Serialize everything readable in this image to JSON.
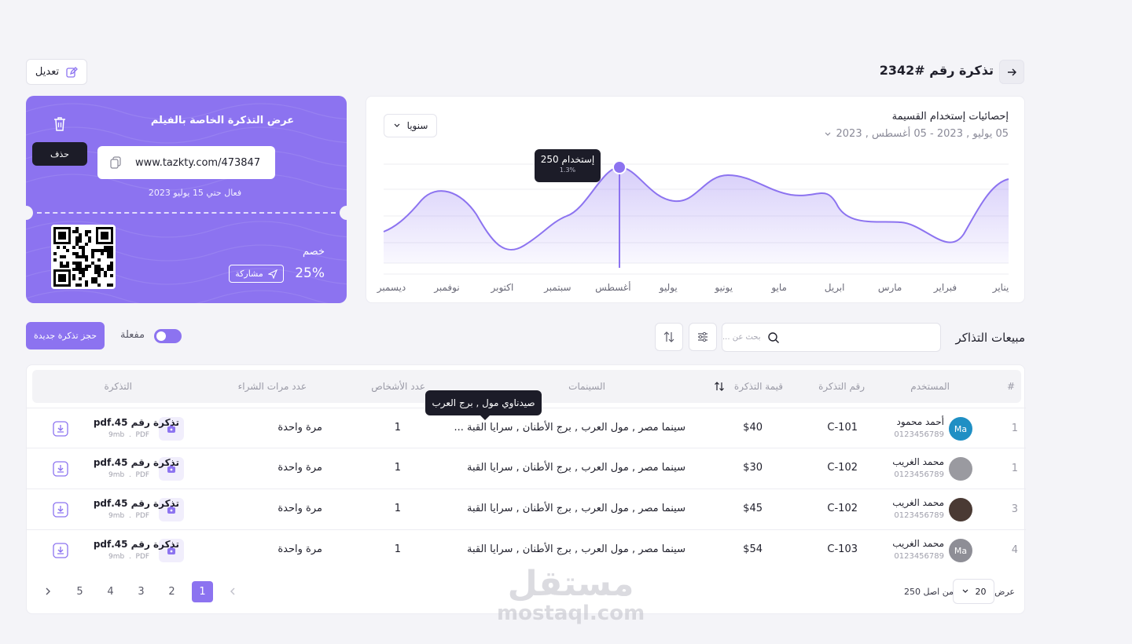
{
  "header": {
    "title": "تذكرة رقم #2342",
    "edit_label": "تعديل"
  },
  "stats": {
    "title": "إحصائيات إستخدام القسيمة",
    "date_range": "05 يوليو , 2023 - 05 أغسطس , 2023",
    "period": "سنويا",
    "tooltip_main": "250 إستخدام",
    "tooltip_sub": "1.3%"
  },
  "chart_data": {
    "type": "area",
    "categories": [
      "يناير",
      "فبراير",
      "مارس",
      "ابريل",
      "مايو",
      "يونيو",
      "يوليو",
      "أغسطس",
      "سبتمبر",
      "اكتوبر",
      "نوفمبر",
      "ديسمبر"
    ],
    "highlight": {
      "category": "أغسطس",
      "value": 250,
      "label": "250 إستخدام",
      "change": "1.3%"
    },
    "grid": true
  },
  "ticket": {
    "title": "عرض التذكرة الخاصة بالفيلم",
    "delete_tooltip": "حذف",
    "link": "www.tazkty.com/473847",
    "valid_until": "فعال حتي 15 يوليو 2023",
    "discount_label": "خصم",
    "discount_value": "25%",
    "share_label": "مشاركة"
  },
  "sales": {
    "title": "مبيعات التذاكر",
    "search_placeholder": "بحث عن ...",
    "toggle_label": "مفعلة",
    "new_button": "حجز تذكرة جديدة"
  },
  "table": {
    "headers": {
      "index": "#",
      "user": "المستخدم",
      "ticket_no": "رقم التذكرة",
      "value": "قيمة التذكرة",
      "cinemas": "السينمات",
      "persons": "عدد الأشخاص",
      "purchases": "عدد مرات الشراء",
      "ticket": "التذكرة"
    },
    "cinema_tooltip": "صيدناوي مول , برج العرب",
    "rows": [
      {
        "index": "1",
        "avatar": "Ma",
        "avatar_color": "#1f8fc4",
        "name": "أحمد محمود",
        "phone": "0123456789",
        "ticket_no": "C-101",
        "value": "$40",
        "cinemas": "سينما مصر , مول العرب , برج الأطنان , سرايا القبة ...",
        "persons": "1",
        "purchases": "مرة واحدة",
        "file": "تذكرة رقم 45.pdf",
        "size": "9mb",
        "type": "PDF"
      },
      {
        "index": "1",
        "avatar": "",
        "avatar_color": "#9a9aa0",
        "name": "محمد الغريب",
        "phone": "0123456789",
        "ticket_no": "C-102",
        "value": "$30",
        "cinemas": "سينما مصر , مول العرب , برج الأطنان , سرايا القبة",
        "persons": "1",
        "purchases": "مرة واحدة",
        "file": "تذكرة رقم 45.pdf",
        "size": "9mb",
        "type": "PDF"
      },
      {
        "index": "3",
        "avatar": "",
        "avatar_color": "#4a3a34",
        "name": "محمد الغريب",
        "phone": "0123456789",
        "ticket_no": "C-102",
        "value": "$45",
        "cinemas": "سينما مصر , مول العرب , برج الأطنان , سرايا القبة",
        "persons": "1",
        "purchases": "مرة واحدة",
        "file": "تذكرة رقم 45.pdf",
        "size": "9mb",
        "type": "PDF"
      },
      {
        "index": "4",
        "avatar": "Ma",
        "avatar_color": "#8e8e96",
        "name": "محمد الغريب",
        "phone": "0123456789",
        "ticket_no": "C-103",
        "value": "$54",
        "cinemas": "سينما مصر , مول العرب , برج الأطنان , سرايا القبة",
        "persons": "1",
        "purchases": "مرة واحدة",
        "file": "تذكرة رقم 45.pdf",
        "size": "9mb",
        "type": "PDF"
      }
    ]
  },
  "pagination": {
    "pages": [
      "1",
      "2",
      "3",
      "4",
      "5"
    ],
    "active": "1",
    "show_label": "عرض",
    "per_page": "20",
    "of_total": "من اصل 250"
  },
  "watermark": {
    "brand": "مستقل",
    "domain": "mostaql.com"
  },
  "colors": {
    "accent": "#8c73f0",
    "dark": "#1c1c28"
  }
}
